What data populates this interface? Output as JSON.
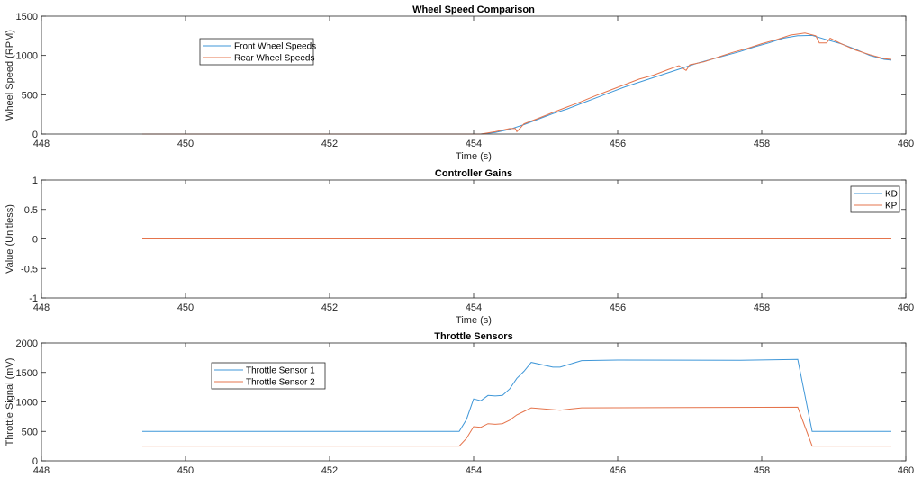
{
  "colors": {
    "series1": "#3f97d8",
    "series2": "#e5744c",
    "axis": "#262626"
  },
  "chart_data": [
    {
      "type": "line",
      "title": "Wheel Speed Comparison",
      "xlabel": "Time (s)",
      "ylabel": "Wheel Speed (RPM)",
      "xlim": [
        448,
        460
      ],
      "ylim": [
        0,
        1500
      ],
      "xticks": [
        448,
        450,
        452,
        454,
        456,
        458,
        460
      ],
      "yticks": [
        0,
        500,
        1000,
        1500
      ],
      "legend_position": "top-left",
      "series": [
        {
          "name": "Front Wheel Speeds",
          "x": [
            449.4,
            454.1,
            454.3,
            454.5,
            454.7,
            454.9,
            455.1,
            455.3,
            455.5,
            455.7,
            455.9,
            456.1,
            456.3,
            456.5,
            456.7,
            456.9,
            457.1,
            457.3,
            457.5,
            457.7,
            457.9,
            458.1,
            458.3,
            458.5,
            458.7,
            458.9,
            459.1,
            459.3,
            459.5,
            459.7,
            459.8
          ],
          "y": [
            0,
            0,
            20,
            60,
            120,
            190,
            260,
            320,
            390,
            460,
            530,
            600,
            660,
            720,
            780,
            840,
            900,
            950,
            1000,
            1050,
            1110,
            1160,
            1220,
            1250,
            1255,
            1200,
            1150,
            1080,
            1000,
            950,
            940
          ]
        },
        {
          "name": "Rear Wheel Speeds",
          "x": [
            449.4,
            454.1,
            454.3,
            454.5,
            454.58,
            454.6,
            454.65,
            454.7,
            454.9,
            455.1,
            455.3,
            455.5,
            455.7,
            455.9,
            456.1,
            456.3,
            456.5,
            456.7,
            456.85,
            456.95,
            457.0,
            457.2,
            457.4,
            457.6,
            457.8,
            458.0,
            458.2,
            458.4,
            458.6,
            458.75,
            458.8,
            458.9,
            458.95,
            459.1,
            459.3,
            459.5,
            459.7,
            459.8
          ],
          "y": [
            0,
            0,
            30,
            70,
            70,
            30,
            80,
            130,
            200,
            275,
            345,
            415,
            490,
            560,
            630,
            700,
            750,
            820,
            870,
            810,
            880,
            920,
            980,
            1040,
            1090,
            1150,
            1200,
            1260,
            1285,
            1250,
            1160,
            1160,
            1220,
            1150,
            1070,
            1010,
            960,
            950
          ]
        }
      ]
    },
    {
      "type": "line",
      "title": "Controller Gains",
      "xlabel": "Time (s)",
      "ylabel": "Value (Unitless)",
      "xlim": [
        448,
        460
      ],
      "ylim": [
        -1,
        1
      ],
      "xticks": [
        448,
        450,
        452,
        454,
        456,
        458,
        460
      ],
      "yticks": [
        -1,
        -0.5,
        0,
        0.5,
        1
      ],
      "legend_position": "top-right",
      "series": [
        {
          "name": "KD",
          "x": [
            449.4,
            459.8
          ],
          "y": [
            0,
            0
          ]
        },
        {
          "name": "KP",
          "x": [
            449.4,
            459.8
          ],
          "y": [
            0,
            0
          ]
        }
      ]
    },
    {
      "type": "line",
      "title": "Throttle Sensors",
      "xlabel": "",
      "ylabel": "Throttle Signal (mV)",
      "xlim": [
        448,
        460
      ],
      "ylim": [
        0,
        2000
      ],
      "xticks": [
        448,
        450,
        452,
        454,
        456,
        458,
        460
      ],
      "yticks": [
        0,
        500,
        1000,
        1500,
        2000
      ],
      "legend_position": "top-left",
      "series": [
        {
          "name": "Throttle Sensor 1",
          "x": [
            449.4,
            453.8,
            453.9,
            454.0,
            454.1,
            454.2,
            454.3,
            454.4,
            454.5,
            454.6,
            454.7,
            454.8,
            455.1,
            455.2,
            455.5,
            456.0,
            457.7,
            458.5,
            458.7,
            459.8
          ],
          "y": [
            500,
            500,
            700,
            1050,
            1020,
            1110,
            1100,
            1110,
            1220,
            1400,
            1520,
            1670,
            1590,
            1590,
            1700,
            1710,
            1705,
            1720,
            500,
            500
          ]
        },
        {
          "name": "Throttle Sensor 2",
          "x": [
            449.4,
            453.8,
            453.9,
            454.0,
            454.1,
            454.2,
            454.3,
            454.4,
            454.5,
            454.6,
            454.7,
            454.8,
            455.2,
            455.5,
            458.5,
            458.7,
            459.8
          ],
          "y": [
            250,
            250,
            380,
            580,
            570,
            630,
            620,
            630,
            690,
            780,
            840,
            900,
            860,
            900,
            910,
            250,
            250
          ]
        }
      ]
    }
  ]
}
